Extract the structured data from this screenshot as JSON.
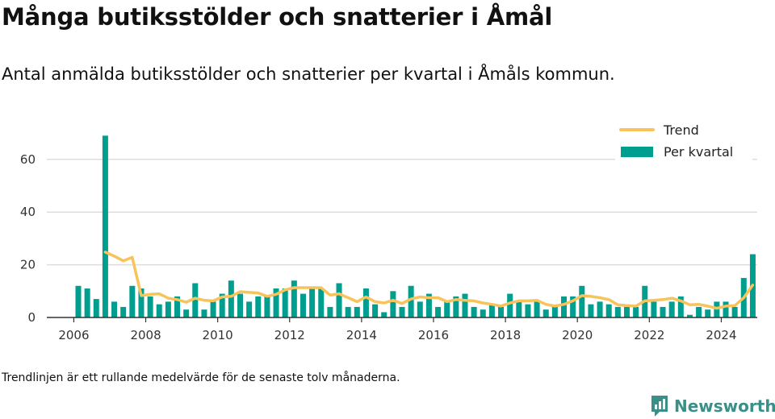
{
  "title": "Många butiksstölder och snatterier i Åmål",
  "subtitle": "Antal anmälda butiksstölder och snatterier per kvartal i Åmåls kommun.",
  "footnote": "Trendlinjen är ett rullande medelvärde för de senaste tolv månaderna.",
  "brand": {
    "name": "Newsworthy",
    "icon": "newsworthy-logo-icon"
  },
  "colors": {
    "bars": "#009e8e",
    "trend": "#f7c35a",
    "grid": "#dddddd",
    "axis": "#333333",
    "brand": "#3a8f89"
  },
  "chart_data": {
    "type": "bar",
    "x_unit": "quarter",
    "legend": {
      "placement": "top-right",
      "entries": [
        "Trend",
        "Per kvartal"
      ]
    },
    "xlim": [
      "2005-Q2",
      "2025-Q1"
    ],
    "ylim": [
      0,
      70
    ],
    "yticks": [
      0,
      20,
      40,
      60
    ],
    "ytick_labels": [
      "0",
      "20",
      "40",
      "60"
    ],
    "xticks": [
      2006,
      2008,
      2010,
      2012,
      2014,
      2016,
      2018,
      2020,
      2022,
      2024
    ],
    "xtick_labels": [
      "2006",
      "2008",
      "2010",
      "2012",
      "2014",
      "2016",
      "2018",
      "2020",
      "2022",
      "2024"
    ],
    "grid": true,
    "series": [
      {
        "name": "Per kvartal",
        "type": "bar",
        "x": [
          "2006-Q1",
          "2006-Q2",
          "2006-Q3",
          "2006-Q4",
          "2007-Q1",
          "2007-Q2",
          "2007-Q3",
          "2007-Q4",
          "2008-Q1",
          "2008-Q2",
          "2008-Q3",
          "2008-Q4",
          "2009-Q1",
          "2009-Q2",
          "2009-Q3",
          "2009-Q4",
          "2010-Q1",
          "2010-Q2",
          "2010-Q3",
          "2010-Q4",
          "2011-Q1",
          "2011-Q2",
          "2011-Q3",
          "2011-Q4",
          "2012-Q1",
          "2012-Q2",
          "2012-Q3",
          "2012-Q4",
          "2013-Q1",
          "2013-Q2",
          "2013-Q3",
          "2013-Q4",
          "2014-Q1",
          "2014-Q2",
          "2014-Q3",
          "2014-Q4",
          "2015-Q1",
          "2015-Q2",
          "2015-Q3",
          "2015-Q4",
          "2016-Q1",
          "2016-Q2",
          "2016-Q3",
          "2016-Q4",
          "2017-Q1",
          "2017-Q2",
          "2017-Q3",
          "2017-Q4",
          "2018-Q1",
          "2018-Q2",
          "2018-Q3",
          "2018-Q4",
          "2019-Q1",
          "2019-Q2",
          "2019-Q3",
          "2019-Q4",
          "2020-Q1",
          "2020-Q2",
          "2020-Q3",
          "2020-Q4",
          "2021-Q1",
          "2021-Q2",
          "2021-Q3",
          "2021-Q4",
          "2022-Q1",
          "2022-Q2",
          "2022-Q3",
          "2022-Q4",
          "2023-Q1",
          "2023-Q2",
          "2023-Q3",
          "2023-Q4",
          "2024-Q1",
          "2024-Q2",
          "2024-Q3",
          "2024-Q4"
        ],
        "values": [
          12,
          11,
          7,
          69,
          6,
          4,
          12,
          11,
          8,
          5,
          6,
          8,
          3,
          13,
          3,
          6,
          9,
          14,
          9,
          6,
          8,
          8,
          11,
          11,
          14,
          9,
          11,
          11,
          4,
          13,
          4,
          4,
          11,
          5,
          2,
          10,
          4,
          12,
          6,
          9,
          4,
          6,
          8,
          9,
          4,
          3,
          5,
          4,
          9,
          6,
          5,
          6,
          3,
          4,
          8,
          8,
          12,
          5,
          6,
          5,
          4,
          4,
          4,
          12,
          6,
          4,
          6,
          8,
          1,
          4,
          3,
          6,
          6,
          4,
          15,
          24
        ]
      },
      {
        "name": "Trend",
        "type": "line",
        "x": [
          "2006-Q4",
          "2007-Q1",
          "2007-Q2",
          "2007-Q3",
          "2007-Q4",
          "2008-Q1",
          "2008-Q2",
          "2008-Q3",
          "2008-Q4",
          "2009-Q1",
          "2009-Q2",
          "2009-Q3",
          "2009-Q4",
          "2010-Q1",
          "2010-Q2",
          "2010-Q3",
          "2010-Q4",
          "2011-Q1",
          "2011-Q2",
          "2011-Q3",
          "2011-Q4",
          "2012-Q1",
          "2012-Q2",
          "2012-Q3",
          "2012-Q4",
          "2013-Q1",
          "2013-Q2",
          "2013-Q3",
          "2013-Q4",
          "2014-Q1",
          "2014-Q2",
          "2014-Q3",
          "2014-Q4",
          "2015-Q1",
          "2015-Q2",
          "2015-Q3",
          "2015-Q4",
          "2016-Q1",
          "2016-Q2",
          "2016-Q3",
          "2016-Q4",
          "2017-Q1",
          "2017-Q2",
          "2017-Q3",
          "2017-Q4",
          "2018-Q1",
          "2018-Q2",
          "2018-Q3",
          "2018-Q4",
          "2019-Q1",
          "2019-Q2",
          "2019-Q3",
          "2019-Q4",
          "2020-Q1",
          "2020-Q2",
          "2020-Q3",
          "2020-Q4",
          "2021-Q1",
          "2021-Q2",
          "2021-Q3",
          "2021-Q4",
          "2022-Q1",
          "2022-Q2",
          "2022-Q3",
          "2022-Q4",
          "2023-Q1",
          "2023-Q2",
          "2023-Q3",
          "2023-Q4",
          "2024-Q1",
          "2024-Q2",
          "2024-Q3",
          "2024-Q4"
        ],
        "values": [
          24.8,
          23.3,
          21.5,
          22.8,
          8.3,
          8.8,
          9.0,
          7.3,
          6.8,
          5.8,
          7.3,
          6.5,
          6.3,
          7.8,
          8.0,
          9.8,
          9.5,
          9.3,
          8.0,
          8.8,
          10.5,
          11.3,
          11.3,
          11.3,
          11.3,
          8.5,
          9.0,
          7.5,
          6.0,
          7.8,
          6.0,
          5.5,
          6.5,
          5.3,
          7.0,
          7.8,
          7.5,
          7.5,
          6.0,
          6.8,
          6.5,
          6.3,
          5.5,
          5.0,
          4.3,
          5.5,
          6.3,
          6.3,
          6.5,
          5.0,
          4.3,
          5.0,
          6.3,
          8.3,
          8.0,
          7.5,
          6.8,
          4.8,
          4.5,
          4.3,
          6.3,
          6.5,
          6.8,
          7.3,
          6.3,
          4.8,
          5.0,
          4.3,
          3.5,
          4.3,
          4.5,
          7.5,
          12.3
        ]
      }
    ]
  }
}
